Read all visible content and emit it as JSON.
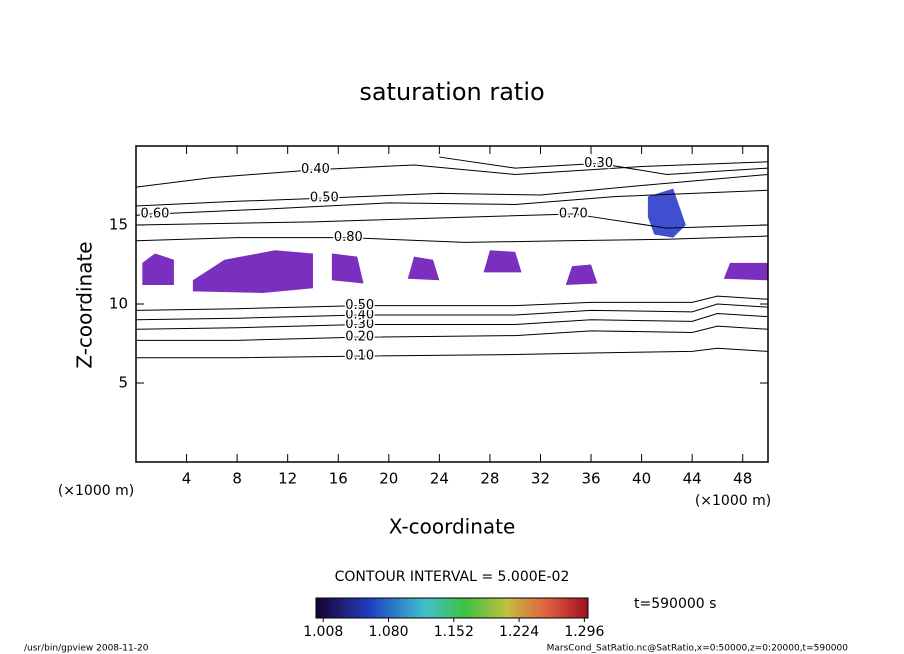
{
  "chart_data": {
    "type": "contour",
    "title": "saturation ratio",
    "x_label": "X-coordinate",
    "y_label": "Z-coordinate",
    "x_unit": "(×1000 m)",
    "y_unit": "(×1000 m)",
    "xlim": [
      0,
      50
    ],
    "ylim": [
      0,
      20
    ],
    "xticks": [
      4,
      8,
      12,
      16,
      20,
      24,
      28,
      32,
      36,
      40,
      44,
      48
    ],
    "yticks": [
      5,
      10,
      15
    ],
    "contour_interval": "CONTOUR INTERVAL = 5.000E-02",
    "time_label": "t=590000 s",
    "footer_left": "/usr/bin/gpview  2008-11-20",
    "footer_right": "MarsCond_SatRatio.nc@SatRatio,x=0:50000,z=0:20000,t=590000",
    "contours": [
      {
        "label": "0.10",
        "x": [
          0,
          8,
          17.7,
          30,
          36,
          44,
          46,
          50
        ],
        "y": [
          6.6,
          6.6,
          6.7,
          6.8,
          6.9,
          7.0,
          7.2,
          7.0
        ]
      },
      {
        "label": "0.20",
        "x": [
          0,
          8,
          17.7,
          30,
          36,
          44,
          46,
          50
        ],
        "y": [
          7.7,
          7.7,
          7.9,
          8.0,
          8.3,
          8.2,
          8.6,
          8.4
        ]
      },
      {
        "label": "0.30",
        "x": [
          0,
          8,
          17.7,
          30,
          36,
          44,
          46,
          50
        ],
        "y": [
          8.4,
          8.5,
          8.7,
          8.7,
          9.0,
          8.9,
          9.4,
          9.2
        ]
      },
      {
        "label": "0.40",
        "x": [
          0,
          8,
          17.7,
          30,
          36,
          44,
          46,
          50
        ],
        "y": [
          9.0,
          9.1,
          9.3,
          9.3,
          9.6,
          9.5,
          10.0,
          9.8
        ]
      },
      {
        "label": "0.50",
        "x": [
          0,
          8,
          17.7,
          30,
          36,
          44,
          46,
          50
        ],
        "y": [
          9.6,
          9.7,
          9.9,
          9.9,
          10.1,
          10.1,
          10.5,
          10.3
        ]
      },
      {
        "label": "0.80",
        "x": [
          0,
          8,
          16.8,
          26,
          34,
          42,
          50
        ],
        "y": [
          14.0,
          14.2,
          14.2,
          13.9,
          14.0,
          14.1,
          14.3
        ]
      },
      {
        "label": "0.70",
        "x": [
          0,
          14,
          34.6,
          42,
          50
        ],
        "y": [
          15.0,
          15.2,
          15.7,
          14.8,
          15.0
        ]
      },
      {
        "label": "0.60",
        "x": [
          0,
          0.8,
          1.5,
          10,
          20,
          30,
          38,
          50
        ],
        "y": [
          15.6,
          15.7,
          15.7,
          16.0,
          16.4,
          16.3,
          16.8,
          17.2
        ]
      },
      {
        "label": "0.50",
        "x": [
          0,
          8,
          14.9,
          24,
          32,
          40,
          50
        ],
        "y": [
          16.2,
          16.5,
          16.7,
          17.0,
          16.9,
          17.5,
          18.2
        ]
      },
      {
        "label": "0.40",
        "x": [
          0,
          6,
          14.2,
          22,
          30,
          40,
          50
        ],
        "y": [
          17.4,
          18.0,
          18.5,
          18.8,
          18.2,
          18.7,
          19.0
        ]
      },
      {
        "label": "0.30",
        "x": [
          24,
          30,
          36.6,
          42,
          50
        ],
        "y": [
          19.3,
          18.6,
          18.9,
          18.2,
          18.6
        ]
      }
    ],
    "shaded_regions": [
      {
        "color": "#7b2fbf",
        "x": [
          0.5,
          3,
          3,
          1.5,
          0.5
        ],
        "y": [
          11.2,
          11.2,
          12.8,
          13.2,
          12.6
        ]
      },
      {
        "color": "#7b2fbf",
        "x": [
          4.5,
          10,
          14,
          14,
          11,
          7,
          4.5
        ],
        "y": [
          10.8,
          10.7,
          11.0,
          13.2,
          13.4,
          12.8,
          11.5
        ]
      },
      {
        "color": "#7b2fbf",
        "x": [
          15.5,
          18,
          17.5,
          15.5
        ],
        "y": [
          11.5,
          11.3,
          13.0,
          13.2
        ]
      },
      {
        "color": "#7b2fbf",
        "x": [
          21.5,
          24,
          23.5,
          22
        ],
        "y": [
          11.6,
          11.5,
          12.8,
          13.0
        ]
      },
      {
        "color": "#7b2fbf",
        "x": [
          27.5,
          30.5,
          30,
          28
        ],
        "y": [
          12.0,
          12.0,
          13.3,
          13.4
        ]
      },
      {
        "color": "#7b2fbf",
        "x": [
          34,
          36.5,
          36,
          34.5
        ],
        "y": [
          11.2,
          11.3,
          12.5,
          12.4
        ]
      },
      {
        "color": "#7b2fbf",
        "x": [
          46.5,
          50,
          50,
          47
        ],
        "y": [
          11.6,
          11.5,
          12.6,
          12.6
        ]
      },
      {
        "color": "#3f4fd0",
        "x": [
          40.5,
          42.5,
          43.5,
          42.5,
          41,
          40.5
        ],
        "y": [
          16.8,
          17.3,
          15.0,
          14.2,
          14.4,
          15.5
        ]
      }
    ],
    "clim": [
      1.0,
      1.3
    ],
    "colorbar_ticks": [
      1.008,
      {
        "value": 1.08,
        "label": "1.080"
      },
      1.152,
      1.224,
      1.296
    ]
  }
}
